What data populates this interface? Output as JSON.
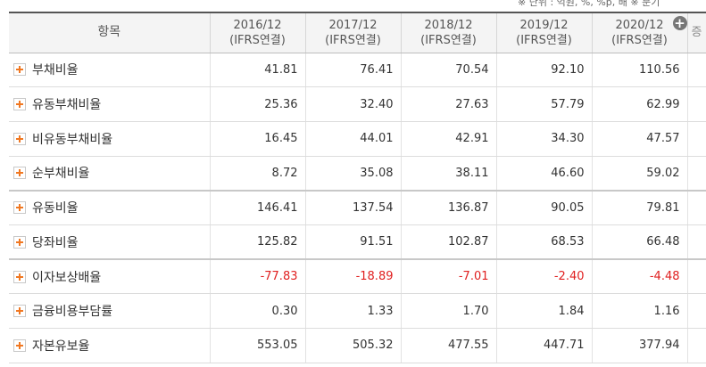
{
  "note": "※ 단위 : 억원, %, %p, 배    ※ 분기",
  "header": {
    "item_label": "항목",
    "periods": [
      {
        "year": "2016/12",
        "basis": "(IFRS연결)"
      },
      {
        "year": "2017/12",
        "basis": "(IFRS연결)"
      },
      {
        "year": "2018/12",
        "basis": "(IFRS연결)"
      },
      {
        "year": "2019/12",
        "basis": "(IFRS연결)"
      },
      {
        "year": "2020/12",
        "basis": "(IFRS연결)"
      }
    ],
    "expand_icon": "plus-circle-icon",
    "extra_col": "증"
  },
  "rows": [
    {
      "name": "부채비율",
      "values": [
        "41.81",
        "76.41",
        "70.54",
        "92.10",
        "110.56"
      ]
    },
    {
      "name": "유동부채비율",
      "values": [
        "25.36",
        "32.40",
        "27.63",
        "57.79",
        "62.99"
      ]
    },
    {
      "name": "비유동부채비율",
      "values": [
        "16.45",
        "44.01",
        "42.91",
        "34.30",
        "47.57"
      ]
    },
    {
      "name": "순부채비율",
      "values": [
        "8.72",
        "35.08",
        "38.11",
        "46.60",
        "59.02"
      ]
    },
    {
      "name": "유동비율",
      "values": [
        "146.41",
        "137.54",
        "136.87",
        "90.05",
        "79.81"
      ]
    },
    {
      "name": "당좌비율",
      "values": [
        "125.82",
        "91.51",
        "102.87",
        "68.53",
        "66.48"
      ]
    },
    {
      "name": "이자보상배율",
      "values": [
        "-77.83",
        "-18.89",
        "-7.01",
        "-2.40",
        "-4.48"
      ],
      "negative": true
    },
    {
      "name": "금융비용부담률",
      "values": [
        "0.30",
        "1.33",
        "1.70",
        "1.84",
        "1.16"
      ]
    },
    {
      "name": "자본유보율",
      "values": [
        "553.05",
        "505.32",
        "477.55",
        "447.71",
        "377.94"
      ]
    }
  ],
  "colors": {
    "negative": "#e02020",
    "expand_button": "#f07822",
    "header_bg": "#f4f4f4"
  }
}
